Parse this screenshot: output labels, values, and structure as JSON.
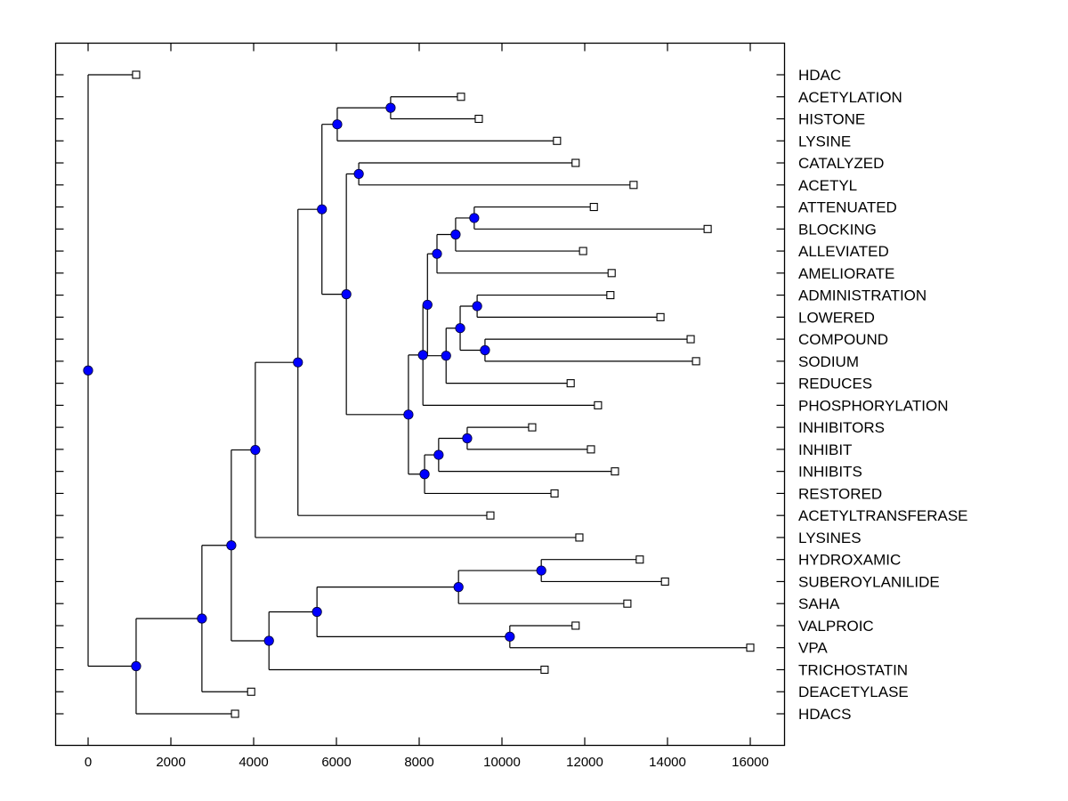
{
  "chart_data": {
    "type": "dendrogram",
    "title": "",
    "xlabel": "",
    "ylabel": "",
    "xlim": [
      -800,
      16800
    ],
    "x_ticks": [
      0,
      2000,
      4000,
      6000,
      8000,
      10000,
      12000,
      14000,
      16000
    ],
    "x_tick_labels": [
      "0",
      "2000",
      "4000",
      "6000",
      "8000",
      "10000",
      "12000",
      "14000",
      "16000"
    ],
    "grid": false,
    "leaf_labels_position": "right",
    "colors": {
      "internal_node": "#0000ff",
      "leaf_node": "#ffffff",
      "line": "#000000"
    },
    "leaves": [
      {
        "id": "HDAC",
        "label": "HDAC",
        "x": 1160
      },
      {
        "id": "ACETYLATION",
        "label": "ACETYLATION",
        "x": 9010
      },
      {
        "id": "HISTONE",
        "label": "HISTONE",
        "x": 9440
      },
      {
        "id": "LYSINE",
        "label": "LYSINE",
        "x": 11330
      },
      {
        "id": "CATALYZED",
        "label": "CATALYZED",
        "x": 11780
      },
      {
        "id": "ACETYL",
        "label": "ACETYL",
        "x": 13180
      },
      {
        "id": "ATTENUATED",
        "label": "ATTENUATED",
        "x": 12220
      },
      {
        "id": "BLOCKING",
        "label": "BLOCKING",
        "x": 14970
      },
      {
        "id": "ALLEVIATED",
        "label": "ALLEVIATED",
        "x": 11960
      },
      {
        "id": "AMELIORATE",
        "label": "AMELIORATE",
        "x": 12650
      },
      {
        "id": "ADMINISTRATION",
        "label": "ADMINISTRATION",
        "x": 12620
      },
      {
        "id": "LOWERED",
        "label": "LOWERED",
        "x": 13830
      },
      {
        "id": "COMPOUND",
        "label": "COMPOUND",
        "x": 14560
      },
      {
        "id": "SODIUM",
        "label": "SODIUM",
        "x": 14690
      },
      {
        "id": "REDUCES",
        "label": "REDUCES",
        "x": 11660
      },
      {
        "id": "PHOSPHORYLATION",
        "label": "PHOSPHORYLATION",
        "x": 12320
      },
      {
        "id": "INHIBITORS",
        "label": "INHIBITORS",
        "x": 10730
      },
      {
        "id": "INHIBIT",
        "label": "INHIBIT",
        "x": 12150
      },
      {
        "id": "INHIBITS",
        "label": "INHIBITS",
        "x": 12730
      },
      {
        "id": "RESTORED",
        "label": "RESTORED",
        "x": 11270
      },
      {
        "id": "ACETYLTRANSFERASE",
        "label": "ACETYLTRANSFERASE",
        "x": 9720
      },
      {
        "id": "LYSINES",
        "label": "LYSINES",
        "x": 11870
      },
      {
        "id": "HYDROXAMIC",
        "label": "HYDROXAMIC",
        "x": 13330
      },
      {
        "id": "SUBEROYLANILIDE",
        "label": "SUBEROYLANILIDE",
        "x": 13940
      },
      {
        "id": "SAHA",
        "label": "SAHA",
        "x": 13030
      },
      {
        "id": "VALPROIC",
        "label": "VALPROIC",
        "x": 11780
      },
      {
        "id": "VPA",
        "label": "VPA",
        "x": 16000
      },
      {
        "id": "TRICHOSTATIN",
        "label": "TRICHOSTATIN",
        "x": 11030
      },
      {
        "id": "DEACETYLASE",
        "label": "DEACETYLASE",
        "x": 3940
      },
      {
        "id": "HDACS",
        "label": "HDACS",
        "x": 3550
      }
    ],
    "internal_nodes": [
      {
        "id": "root",
        "x": 0,
        "children": [
          "HDAC",
          "n_b"
        ]
      },
      {
        "id": "n_b",
        "x": 1160,
        "children": [
          "n_c",
          "HDACS"
        ]
      },
      {
        "id": "n_c",
        "x": 2750,
        "children": [
          "n_d",
          "DEACETYLASE"
        ]
      },
      {
        "id": "n_d",
        "x": 3460,
        "children": [
          "n_e",
          "n_v"
        ]
      },
      {
        "id": "n_e",
        "x": 4040,
        "children": [
          "n_f",
          "LYSINES"
        ]
      },
      {
        "id": "n_f",
        "x": 5070,
        "children": [
          "n_g",
          "ACETYLTRANSFERASE"
        ]
      },
      {
        "id": "n_g",
        "x": 5650,
        "children": [
          "n_h",
          "n_k"
        ]
      },
      {
        "id": "n_h",
        "x": 6020,
        "children": [
          "n_i",
          "LYSINE"
        ]
      },
      {
        "id": "n_i",
        "x": 7310,
        "children": [
          "ACETYLATION",
          "HISTONE"
        ]
      },
      {
        "id": "n_k",
        "x": 6240,
        "children": [
          "n_l",
          "n_m"
        ]
      },
      {
        "id": "n_l",
        "x": 6540,
        "children": [
          "CATALYZED",
          "ACETYL"
        ]
      },
      {
        "id": "n_m",
        "x": 7740,
        "children": [
          "n_n",
          "n_s"
        ]
      },
      {
        "id": "n_n",
        "x": 8090,
        "children": [
          "n_o",
          "PHOSPHORYLATION"
        ]
      },
      {
        "id": "n_o",
        "x": 8200,
        "children": [
          "n_q",
          "n_p"
        ]
      },
      {
        "id": "n_q",
        "x": 8430,
        "children": [
          "n_r",
          "AMELIORATE"
        ]
      },
      {
        "id": "n_r",
        "x": 8880,
        "children": [
          "n_r2",
          "ALLEVIATED"
        ]
      },
      {
        "id": "n_r2",
        "x": 9330,
        "children": [
          "ATTENUATED",
          "BLOCKING"
        ]
      },
      {
        "id": "n_p",
        "x": 8650,
        "children": [
          "n_p2",
          "REDUCES"
        ]
      },
      {
        "id": "n_p2",
        "x": 8990,
        "children": [
          "n_p3",
          "n_p4"
        ]
      },
      {
        "id": "n_p3",
        "x": 9400,
        "children": [
          "ADMINISTRATION",
          "LOWERED"
        ]
      },
      {
        "id": "n_p4",
        "x": 9590,
        "children": [
          "COMPOUND",
          "SODIUM"
        ]
      },
      {
        "id": "n_s",
        "x": 8130,
        "children": [
          "n_t",
          "RESTORED"
        ]
      },
      {
        "id": "n_t",
        "x": 8470,
        "children": [
          "n_u",
          "INHIBITS"
        ]
      },
      {
        "id": "n_u",
        "x": 9160,
        "children": [
          "INHIBITORS",
          "INHIBIT"
        ]
      },
      {
        "id": "n_v",
        "x": 4370,
        "children": [
          "n_w",
          "TRICHOSTATIN"
        ]
      },
      {
        "id": "n_w",
        "x": 5530,
        "children": [
          "n_x",
          "n_y"
        ]
      },
      {
        "id": "n_x",
        "x": 8950,
        "children": [
          "n_x2",
          "SAHA"
        ]
      },
      {
        "id": "n_x2",
        "x": 10950,
        "children": [
          "HYDROXAMIC",
          "SUBEROYLANILIDE"
        ]
      },
      {
        "id": "n_y",
        "x": 10190,
        "children": [
          "VALPROIC",
          "VPA"
        ]
      }
    ]
  }
}
